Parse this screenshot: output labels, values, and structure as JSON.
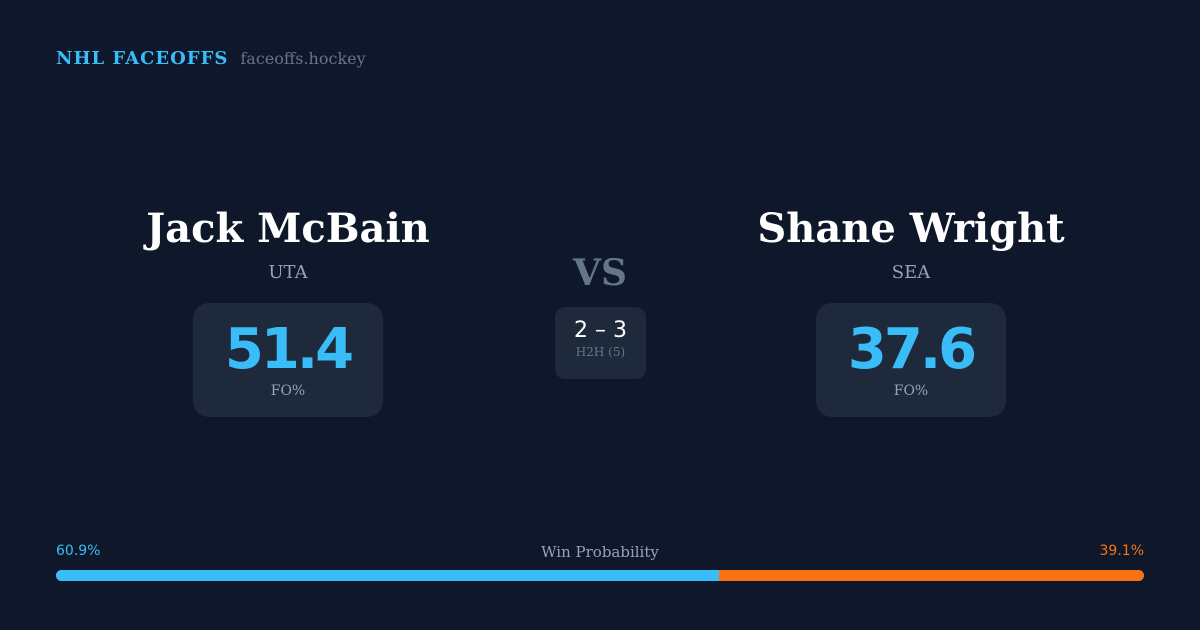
{
  "brand": {
    "title": "NHL FACEOFFS",
    "url": "faceoffs.hockey"
  },
  "left": {
    "name": "Jack McBain",
    "team": "UTA",
    "fo": "51.4",
    "fo_label": "FO%"
  },
  "right": {
    "name": "Shane Wright",
    "team": "SEA",
    "fo": "37.6",
    "fo_label": "FO%"
  },
  "vs": "VS",
  "h2h": {
    "score": "2 – 3",
    "label": "H2H (5)"
  },
  "win_probability": {
    "label": "Win Probability",
    "left": "60.9%",
    "right": "39.1%",
    "left_value": 60.9,
    "right_value": 39.1
  },
  "colors": {
    "background": "#0f172a",
    "left": "#38bdf8",
    "right": "#f97316",
    "card": "#1e293b"
  }
}
